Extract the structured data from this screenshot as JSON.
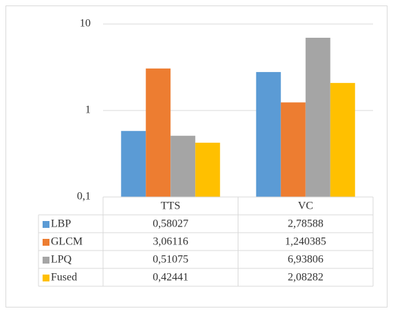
{
  "chart_data": {
    "type": "bar",
    "categories": [
      "TTS",
      "VC"
    ],
    "series": [
      {
        "name": "LBP",
        "color": "#5b9bd5",
        "values": [
          0.58027,
          2.78588
        ],
        "value_labels": [
          "0,58027",
          "2,78588"
        ]
      },
      {
        "name": "GLCM",
        "color": "#ed7d31",
        "values": [
          3.06116,
          1.240385
        ],
        "value_labels": [
          "3,06116",
          "1,240385"
        ]
      },
      {
        "name": "LPQ",
        "color": "#a5a5a5",
        "values": [
          0.51075,
          6.93806
        ],
        "value_labels": [
          "0,51075",
          "6,93806"
        ]
      },
      {
        "name": "Fused",
        "color": "#ffc000",
        "values": [
          0.42441,
          2.08282
        ],
        "value_labels": [
          "0,42441",
          "2,08282"
        ]
      }
    ],
    "ylim": [
      0.1,
      10
    ],
    "yticks": [
      {
        "value": 0.1,
        "label": "0,1"
      },
      {
        "value": 1,
        "label": "1"
      },
      {
        "value": 10,
        "label": "10"
      }
    ],
    "log_scale": true,
    "grid": true,
    "data_table": true
  }
}
